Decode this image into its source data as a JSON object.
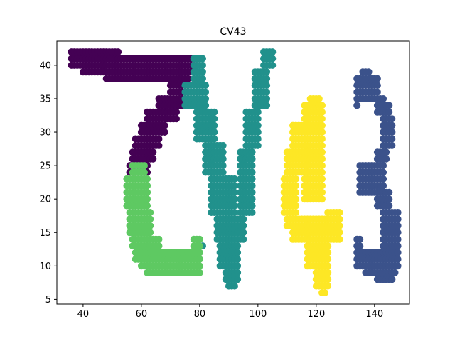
{
  "chart_data": {
    "type": "scatter",
    "title": "CV43",
    "xlabel": "",
    "ylabel": "",
    "xlim": [
      31,
      152
    ],
    "ylim": [
      4.3,
      43.6
    ],
    "xticks": [
      40,
      60,
      80,
      100,
      120,
      140
    ],
    "yticks": [
      5,
      10,
      15,
      20,
      25,
      30,
      35,
      40
    ],
    "grid": false,
    "legend": "none",
    "series": [
      {
        "color": "#440154",
        "regions": [
          {
            "x": [
              36,
              52
            ],
            "y": [
              40,
              42
            ],
            "step": 1
          },
          {
            "x": [
              40,
              78
            ],
            "y": [
              39,
              41
            ],
            "step": 1
          },
          {
            "x": [
              48,
              76
            ],
            "y": [
              38,
              38
            ],
            "step": 1
          },
          {
            "x": [
              70,
              76
            ],
            "y": [
              36,
              37
            ],
            "step": 1
          },
          {
            "x": [
              66,
              74
            ],
            "y": [
              34,
              35
            ],
            "step": 1
          },
          {
            "x": [
              62,
              72
            ],
            "y": [
              32,
              33
            ],
            "step": 1
          },
          {
            "x": [
              60,
              68
            ],
            "y": [
              30,
              31
            ],
            "step": 1
          },
          {
            "x": [
              58,
              66
            ],
            "y": [
              28,
              29
            ],
            "step": 1
          },
          {
            "x": [
              57,
              64
            ],
            "y": [
              26,
              27
            ],
            "step": 1
          },
          {
            "x": [
              56,
              62
            ],
            "y": [
              24,
              25
            ],
            "step": 1
          }
        ]
      },
      {
        "color": "#21918c",
        "regions": [
          {
            "x": [
              78,
              81
            ],
            "y": [
              38,
              41
            ],
            "step": 1
          },
          {
            "x": [
              75,
              82
            ],
            "y": [
              34,
              37
            ],
            "step": 1
          },
          {
            "x": [
              79,
              85
            ],
            "y": [
              29,
              33
            ],
            "step": 1
          },
          {
            "x": [
              82,
              88
            ],
            "y": [
              24,
              28
            ],
            "step": 1
          },
          {
            "x": [
              84,
              92
            ],
            "y": [
              18,
              23
            ],
            "step": 1
          },
          {
            "x": [
              86,
              95
            ],
            "y": [
              14,
              17
            ],
            "step": 1
          },
          {
            "x": [
              87,
              93
            ],
            "y": [
              10,
              13
            ],
            "step": 1
          },
          {
            "x": [
              89,
              93
            ],
            "y": [
              8,
              9
            ],
            "step": 1
          },
          {
            "x": [
              90,
              92
            ],
            "y": [
              7,
              7
            ],
            "step": 1
          },
          {
            "x": [
              94,
              98
            ],
            "y": [
              18,
              27
            ],
            "step": 1
          },
          {
            "x": [
              96,
              100
            ],
            "y": [
              28,
              33
            ],
            "step": 1
          },
          {
            "x": [
              99,
              103
            ],
            "y": [
              34,
              39
            ],
            "step": 1
          },
          {
            "x": [
              102,
              105
            ],
            "y": [
              40,
              42
            ],
            "step": 1
          },
          {
            "x": [
              81,
              81
            ],
            "y": [
              13,
              13
            ],
            "step": 1
          }
        ]
      },
      {
        "color": "#5ec962",
        "regions": [
          {
            "x": [
              57,
              61
            ],
            "y": [
              24,
              25
            ],
            "step": 1
          },
          {
            "x": [
              55,
              62
            ],
            "y": [
              19,
              23
            ],
            "step": 1
          },
          {
            "x": [
              56,
              63
            ],
            "y": [
              15,
              18
            ],
            "step": 1
          },
          {
            "x": [
              57,
              66
            ],
            "y": [
              13,
              14
            ],
            "step": 1
          },
          {
            "x": [
              58,
              80
            ],
            "y": [
              11,
              12
            ],
            "step": 1
          },
          {
            "x": [
              60,
              80
            ],
            "y": [
              10,
              10
            ],
            "step": 1
          },
          {
            "x": [
              62,
              80
            ],
            "y": [
              9,
              9
            ],
            "step": 1
          },
          {
            "x": [
              78,
              80
            ],
            "y": [
              13,
              14
            ],
            "step": 1
          }
        ]
      },
      {
        "color": "#fde725",
        "regions": [
          {
            "x": [
              112,
              116
            ],
            "y": [
              28,
              31
            ],
            "step": 1
          },
          {
            "x": [
              110,
              117
            ],
            "y": [
              24,
              27
            ],
            "step": 1
          },
          {
            "x": [
              109,
              113
            ],
            "y": [
              18,
              23
            ],
            "step": 1
          },
          {
            "x": [
              110,
              124
            ],
            "y": [
              16,
              17
            ],
            "step": 1
          },
          {
            "x": [
              112,
              128
            ],
            "y": [
              14,
              15
            ],
            "step": 1
          },
          {
            "x": [
              116,
              122
            ],
            "y": [
              20,
              34
            ],
            "step": 1
          },
          {
            "x": [
              118,
              121
            ],
            "y": [
              35,
              35
            ],
            "step": 1
          },
          {
            "x": [
              117,
              124
            ],
            "y": [
              10,
              13
            ],
            "step": 1
          },
          {
            "x": [
              120,
              124
            ],
            "y": [
              7,
              9
            ],
            "step": 1
          },
          {
            "x": [
              122,
              123
            ],
            "y": [
              6,
              6
            ],
            "step": 1
          },
          {
            "x": [
              124,
              128
            ],
            "y": [
              16,
              18
            ],
            "step": 1
          }
        ]
      },
      {
        "color": "#3b528b",
        "regions": [
          {
            "x": [
              136,
              138
            ],
            "y": [
              39,
              39
            ],
            "step": 1
          },
          {
            "x": [
              134,
              141
            ],
            "y": [
              36,
              38
            ],
            "step": 1
          },
          {
            "x": [
              134,
              143
            ],
            "y": [
              35,
              35
            ],
            "step": 1
          },
          {
            "x": [
              134,
              134
            ],
            "y": [
              34,
              34
            ],
            "step": 1
          },
          {
            "x": [
              141,
              145
            ],
            "y": [
              33,
              34
            ],
            "step": 1
          },
          {
            "x": [
              143,
              146
            ],
            "y": [
              28,
              32
            ],
            "step": 1
          },
          {
            "x": [
              141,
              144
            ],
            "y": [
              26,
              27
            ],
            "step": 1
          },
          {
            "x": [
              135,
              143
            ],
            "y": [
              21,
              25
            ],
            "step": 1
          },
          {
            "x": [
              141,
              145
            ],
            "y": [
              19,
              21
            ],
            "step": 1
          },
          {
            "x": [
              143,
              148
            ],
            "y": [
              13,
              18
            ],
            "step": 1
          },
          {
            "x": [
              134,
              148
            ],
            "y": [
              10,
              12
            ],
            "step": 1
          },
          {
            "x": [
              134,
              135
            ],
            "y": [
              13,
              14
            ],
            "step": 1
          },
          {
            "x": [
              137,
              147
            ],
            "y": [
              9,
              9
            ],
            "step": 1
          },
          {
            "x": [
              141,
              146
            ],
            "y": [
              8,
              8
            ],
            "step": 1
          }
        ]
      }
    ]
  }
}
